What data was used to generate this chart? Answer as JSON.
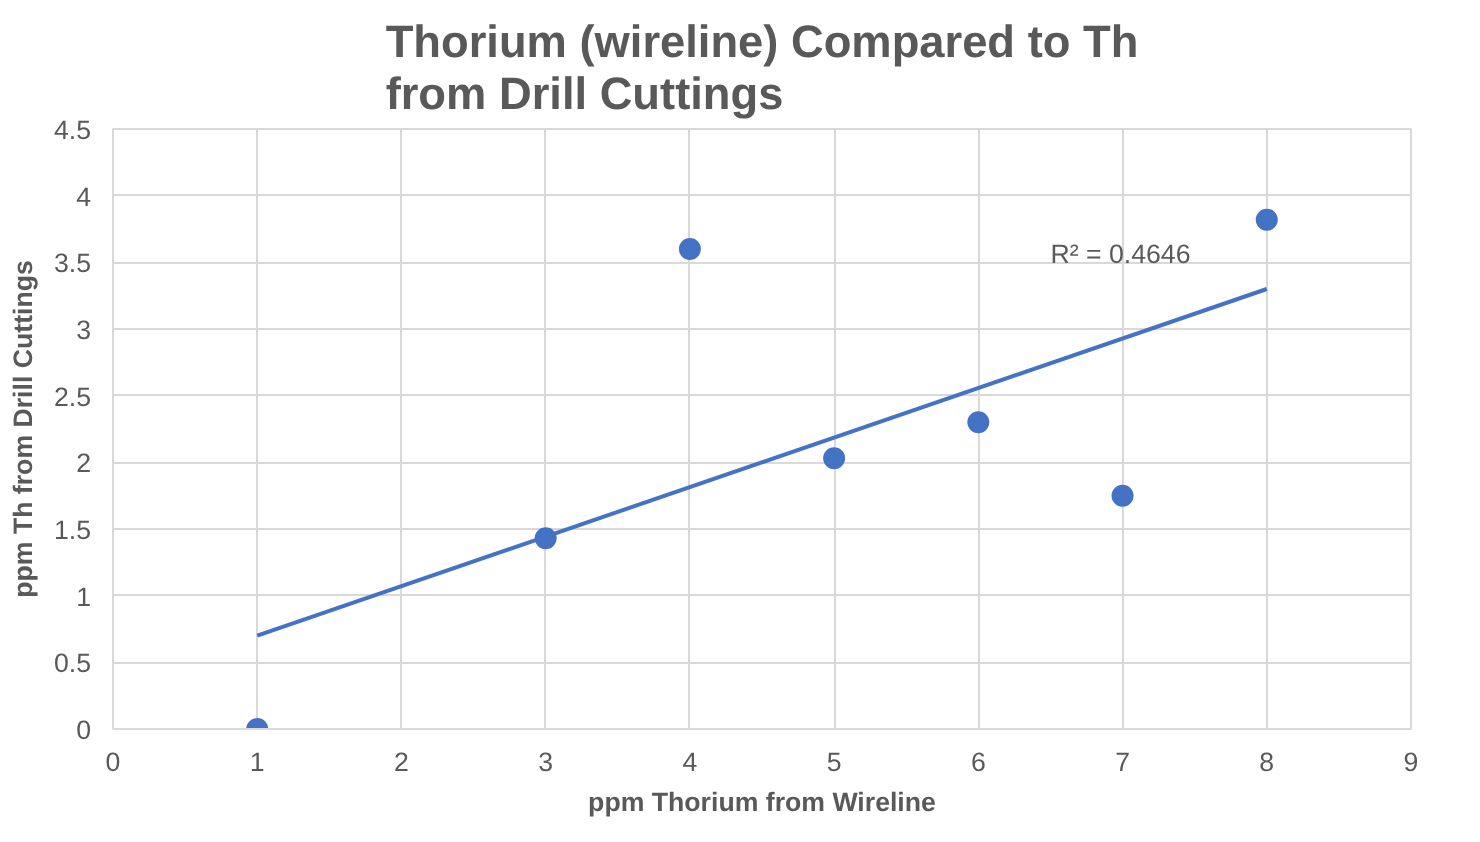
{
  "chart_data": {
    "type": "scatter",
    "title": "Thorium (wireline) Compared to Th from Drill Cuttings",
    "xlabel": "ppm Thorium from Wireline",
    "ylabel": "ppm Th from Drill Cuttings",
    "x": [
      1,
      3,
      4,
      5,
      6,
      7,
      8
    ],
    "series": [
      {
        "color": "#4472c4",
        "marker": "circle",
        "values": [
          0,
          1.43,
          3.6,
          2.03,
          2.3,
          1.75,
          3.82
        ]
      },
      {
        "type": "line",
        "color": "#4472c4",
        "marker": "none",
        "x": [
          1,
          8
        ],
        "values": [
          0.7,
          3.3
        ]
      }
    ],
    "annotations": [
      "R² = 0.4646"
    ],
    "xlim": [
      0,
      9
    ],
    "ylim": [
      0,
      4.5
    ],
    "xticks": [
      0,
      1,
      2,
      3,
      4,
      5,
      6,
      7,
      8,
      9
    ],
    "yticks": [
      0,
      0.5,
      1,
      1.5,
      2,
      2.5,
      3,
      3.5,
      4,
      4.5
    ],
    "grid": true
  }
}
